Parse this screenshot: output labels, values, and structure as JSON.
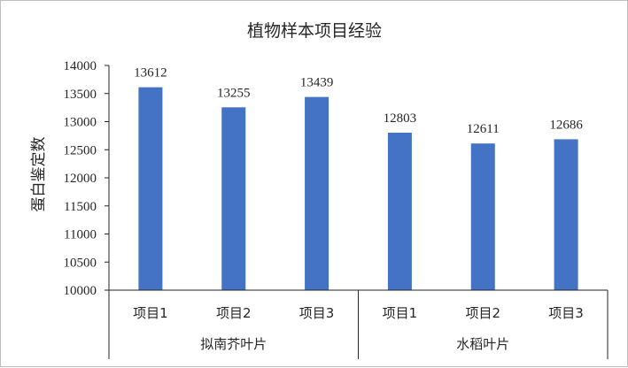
{
  "chart_data": {
    "type": "bar",
    "title": "植物样本项目经验",
    "ylabel": "蛋白鉴定数",
    "xlabel": "",
    "ylim": [
      10000,
      14000
    ],
    "yticks": [
      10000,
      10500,
      11000,
      11500,
      12000,
      12500,
      13000,
      13500,
      14000
    ],
    "groups": [
      {
        "name": "拟南芥叶片",
        "categories": [
          "项目1",
          "项目2",
          "项目3"
        ]
      },
      {
        "name": "水稻叶片",
        "categories": [
          "项目1",
          "项目2",
          "项目3"
        ]
      }
    ],
    "values": [
      13612,
      13255,
      13439,
      12803,
      12611,
      12686
    ],
    "data_labels": true,
    "grid": false,
    "legend": "none",
    "bar_color": "#4472c4"
  }
}
